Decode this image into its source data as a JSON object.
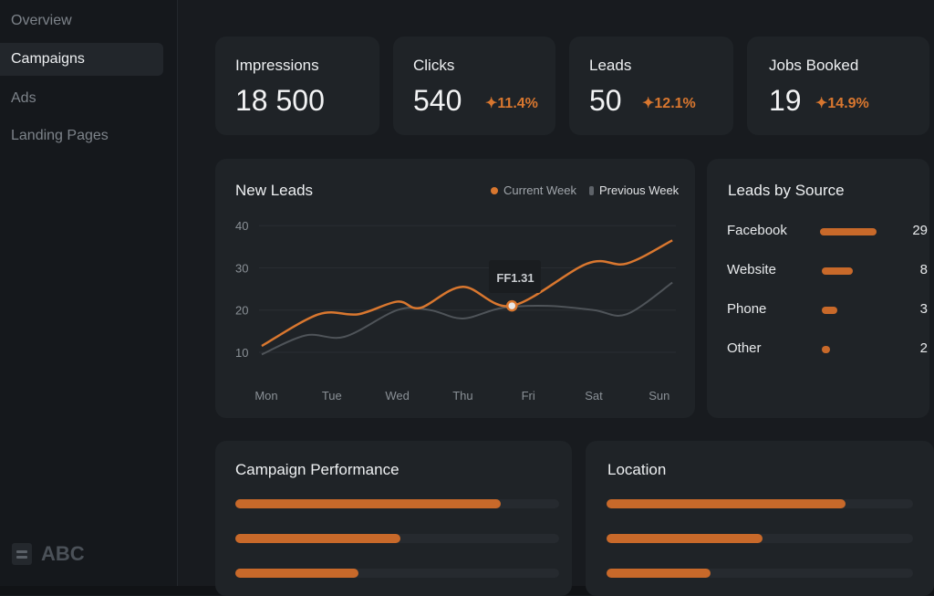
{
  "sidebar": {
    "items": [
      {
        "label": "Overview"
      },
      {
        "label": "Campaigns",
        "active": true
      },
      {
        "label": "Ads"
      },
      {
        "label": "Landing Pages"
      }
    ],
    "logo": "ABC"
  },
  "kpis": [
    {
      "label": "Impressions",
      "value": "18 500"
    },
    {
      "label": "Clicks",
      "value": "540",
      "delta": "11.4%"
    },
    {
      "label": "Leads",
      "value": "50",
      "delta": "12.1%"
    },
    {
      "label": "Jobs Booked",
      "value": "19",
      "delta": "14.9%"
    }
  ],
  "new_leads": {
    "title": "New Leads",
    "legend": [
      "Current Week",
      "Previous Week"
    ],
    "tooltip": "FF1.31",
    "chart_data": {
      "type": "line",
      "categories": [
        "Mon",
        "Tue",
        "Wed",
        "Thu",
        "Fri",
        "Sat",
        "Sun"
      ],
      "yticks": [
        "10",
        "20",
        "30",
        "40"
      ],
      "ylim": [
        0,
        45
      ],
      "series": [
        {
          "name": "Current Week",
          "color": "#d9772f",
          "points": [
            [
              -0.07,
              11.5
            ],
            [
              0.8,
              19
            ],
            [
              1.4,
              19
            ],
            [
              2,
              22
            ],
            [
              2.35,
              20.5
            ],
            [
              3,
              25.5
            ],
            [
              3.75,
              21
            ],
            [
              4.9,
              31
            ],
            [
              5.5,
              31
            ],
            [
              6.2,
              36.5
            ]
          ]
        },
        {
          "name": "Previous Week",
          "color": "#4f5459",
          "points": [
            [
              -0.07,
              9.5
            ],
            [
              0.6,
              14
            ],
            [
              1.2,
              13.7
            ],
            [
              2,
              20
            ],
            [
              2.5,
              20
            ],
            [
              3,
              18
            ],
            [
              3.6,
              20.5
            ],
            [
              4.3,
              21
            ],
            [
              5,
              20
            ],
            [
              5.5,
              19
            ],
            [
              6.2,
              26.5
            ]
          ]
        }
      ],
      "highlight": {
        "x": 3.75,
        "y": 21
      }
    }
  },
  "sources": {
    "title": "Leads by Source",
    "items": [
      {
        "label": "Facebook",
        "value": "29",
        "pct": 100
      },
      {
        "label": "Website",
        "value": "8",
        "pct": 55
      },
      {
        "label": "Phone",
        "value": "3",
        "pct": 27
      },
      {
        "label": "Other",
        "value": "2",
        "pct": 15
      }
    ]
  },
  "campaign": {
    "title": "Campaign Performance",
    "bars": [
      82,
      51,
      38
    ]
  },
  "location": {
    "title": "Location",
    "bars": [
      78,
      51,
      34
    ]
  }
}
